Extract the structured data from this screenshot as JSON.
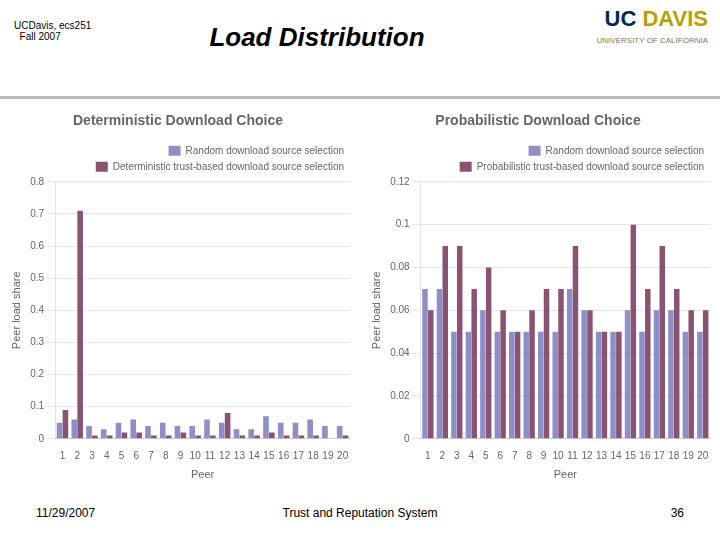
{
  "title": "Load Distribution",
  "subtitle": "UCDavis, ecs251\n  Fall 2007",
  "annotations": [
    {
      "text": "UC",
      "color": "#002855"
    },
    {
      "text": "DAVIS",
      "color": "#B8A000"
    },
    {
      "text": "UNIVERSITY OF CALIFORNIA",
      "color": "#8B7355"
    },
    {
      "text": "11/29/2007"
    },
    {
      "text": "Trust and Reputation System"
    },
    {
      "text": "36"
    }
  ],
  "chart_data": [
    {
      "type": "bar",
      "title": "Deterministic Download Choice",
      "xlabel": "Peer",
      "ylabel": "Peer load share",
      "categories": [
        "1",
        "2",
        "3",
        "4",
        "5",
        "6",
        "7",
        "8",
        "9",
        "10",
        "11",
        "12",
        "13",
        "14",
        "15",
        "16",
        "17",
        "18",
        "19",
        "20"
      ],
      "series": [
        {
          "name": "Random download source selection",
          "color": "#8080c0",
          "values": [
            0.05,
            0.06,
            0.04,
            0.03,
            0.05,
            0.06,
            0.04,
            0.05,
            0.04,
            0.04,
            0.06,
            0.05,
            0.03,
            0.03,
            0.07,
            0.05,
            0.05,
            0.06,
            0.04,
            0.04
          ]
        },
        {
          "name": "Deterministic trust-based download source selection",
          "color": "#7B3B5E",
          "values": [
            0.09,
            0.71,
            0.01,
            0.01,
            0.02,
            0.02,
            0.01,
            0.01,
            0.02,
            0.01,
            0.01,
            0.08,
            0.01,
            0.01,
            0.02,
            0.01,
            0.01,
            0.01,
            0.0,
            0.01
          ]
        }
      ],
      "ylim": [
        0,
        0.8
      ],
      "yticks": [
        0,
        0.1,
        0.2,
        0.3,
        0.4,
        0.5,
        0.6,
        0.7,
        0.8
      ],
      "grid": true,
      "legend": "upper right"
    },
    {
      "type": "bar",
      "title": "Probabilistic Download Choice",
      "xlabel": "Peer",
      "ylabel": "Peer load share",
      "categories": [
        "1",
        "2",
        "3",
        "4",
        "5",
        "6",
        "7",
        "8",
        "9",
        "10",
        "11",
        "12",
        "13",
        "14",
        "15",
        "16",
        "17",
        "18",
        "19",
        "20"
      ],
      "series": [
        {
          "name": "Random download source selection",
          "color": "#8080c0",
          "values": [
            0.07,
            0.07,
            0.05,
            0.05,
            0.06,
            0.05,
            0.05,
            0.05,
            0.05,
            0.05,
            0.07,
            0.06,
            0.05,
            0.05,
            0.06,
            0.05,
            0.06,
            0.06,
            0.05,
            0.05
          ]
        },
        {
          "name": "Probabilistic trust-based download source selection",
          "color": "#7B3B5E",
          "values": [
            0.06,
            0.09,
            0.09,
            0.07,
            0.08,
            0.06,
            0.05,
            0.06,
            0.07,
            0.07,
            0.09,
            0.06,
            0.05,
            0.05,
            0.1,
            0.07,
            0.09,
            0.07,
            0.06,
            0.06
          ]
        }
      ],
      "ylim": [
        0,
        0.12
      ],
      "yticks": [
        0,
        0.02,
        0.04,
        0.06,
        0.08,
        0.1,
        0.12
      ],
      "grid": true,
      "legend": "upper right"
    }
  ]
}
